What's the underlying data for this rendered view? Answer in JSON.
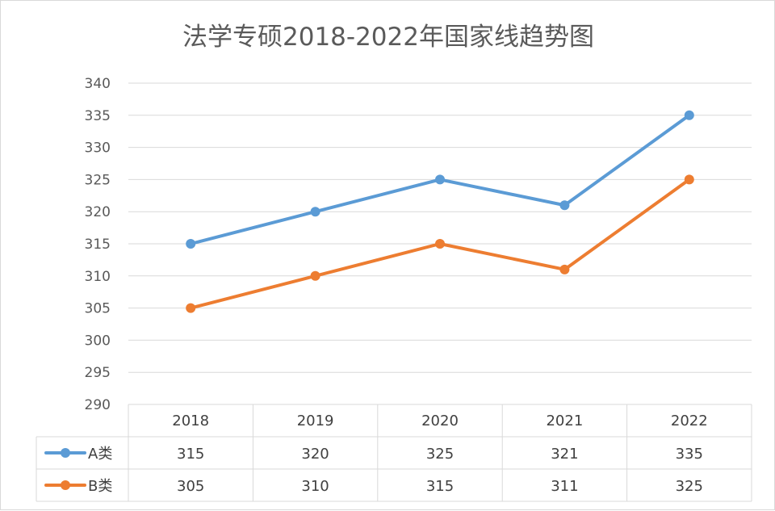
{
  "chart_data": {
    "type": "line",
    "title": "法学专硕2018-2022年国家线趋势图",
    "categories": [
      "2018",
      "2019",
      "2020",
      "2021",
      "2022"
    ],
    "series": [
      {
        "name": "A类",
        "values": [
          315,
          320,
          325,
          321,
          335
        ],
        "value_labels": [
          "315",
          "320",
          "325",
          "321",
          "335"
        ],
        "color": "#5b9bd5"
      },
      {
        "name": "B类",
        "values": [
          305,
          310,
          315,
          311,
          325
        ],
        "value_labels": [
          "305",
          "310",
          "315",
          "311",
          "325"
        ],
        "color": "#ed7d31"
      }
    ],
    "ylim": [
      290,
      340
    ],
    "yticks": [
      "290",
      "295",
      "300",
      "305",
      "310",
      "315",
      "320",
      "325",
      "330",
      "335",
      "340"
    ],
    "grid": true,
    "legend": "data-table",
    "gridline_color": "#d9d9d9"
  }
}
